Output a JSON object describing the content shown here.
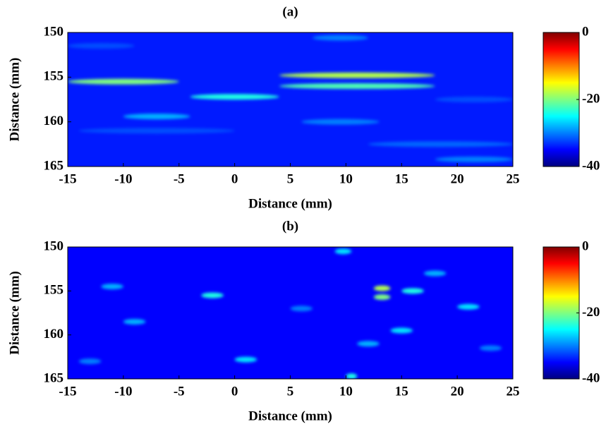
{
  "chart_data": [
    {
      "type": "heatmap",
      "title": "(a)",
      "xlabel": "Distance (mm)",
      "ylabel": "Distance (mm)",
      "xlim": [
        -15,
        25
      ],
      "xticks": [
        -15,
        -10,
        -5,
        0,
        5,
        10,
        15,
        20,
        25
      ],
      "ylim": [
        150,
        165
      ],
      "yticks": [
        150,
        155,
        160,
        165
      ],
      "clim": [
        -40,
        0
      ],
      "cticks": [
        0,
        -20,
        -40
      ],
      "background": -34,
      "segments": [
        {
          "x": [
            -15,
            -5
          ],
          "y": 155.5,
          "value": -20
        },
        {
          "x": [
            -4,
            4
          ],
          "y": 157.2,
          "value": -24
        },
        {
          "x": [
            4,
            18
          ],
          "y": 154.8,
          "value": -18
        },
        {
          "x": [
            4,
            18
          ],
          "y": 156.0,
          "value": -22
        },
        {
          "x": [
            -10,
            -4
          ],
          "y": 159.4,
          "value": -28
        },
        {
          "x": [
            7,
            12
          ],
          "y": 150.6,
          "value": -30
        },
        {
          "x": [
            -15,
            -9
          ],
          "y": 151.5,
          "value": -32
        },
        {
          "x": [
            18,
            25
          ],
          "y": 164.2,
          "value": -30
        },
        {
          "x": [
            6,
            13
          ],
          "y": 160.0,
          "value": -30
        },
        {
          "x": [
            18,
            25
          ],
          "y": 157.5,
          "value": -32
        },
        {
          "x": [
            -14,
            0
          ],
          "y": 161.0,
          "value": -32
        },
        {
          "x": [
            12,
            25
          ],
          "y": 162.5,
          "value": -31
        }
      ]
    },
    {
      "type": "heatmap",
      "title": "(b)",
      "xlabel": "Distance (mm)",
      "ylabel": "Distance (mm)",
      "xlim": [
        -15,
        25
      ],
      "xticks": [
        -15,
        -10,
        -5,
        0,
        5,
        10,
        15,
        20,
        25
      ],
      "ylim": [
        150,
        165
      ],
      "yticks": [
        150,
        155,
        160,
        165
      ],
      "clim": [
        -40,
        0
      ],
      "cticks": [
        0,
        -20,
        -40
      ],
      "background": -35,
      "segments": [
        {
          "x": [
            12.5,
            14
          ],
          "y": 154.7,
          "value": -18
        },
        {
          "x": [
            12.5,
            14
          ],
          "y": 155.7,
          "value": -20
        },
        {
          "x": [
            15,
            17
          ],
          "y": 155.0,
          "value": -24
        },
        {
          "x": [
            -3,
            -1
          ],
          "y": 155.5,
          "value": -24
        },
        {
          "x": [
            9,
            10.5
          ],
          "y": 150.5,
          "value": -26
        },
        {
          "x": [
            10,
            11
          ],
          "y": 164.7,
          "value": -24
        },
        {
          "x": [
            11,
            13
          ],
          "y": 161.0,
          "value": -28
        },
        {
          "x": [
            14,
            16
          ],
          "y": 159.5,
          "value": -26
        },
        {
          "x": [
            20,
            22
          ],
          "y": 156.8,
          "value": -26
        },
        {
          "x": [
            0,
            2
          ],
          "y": 162.8,
          "value": -26
        },
        {
          "x": [
            -10,
            -8
          ],
          "y": 158.5,
          "value": -28
        },
        {
          "x": [
            -12,
            -10
          ],
          "y": 154.5,
          "value": -28
        },
        {
          "x": [
            17,
            19
          ],
          "y": 153.0,
          "value": -28
        },
        {
          "x": [
            5,
            7
          ],
          "y": 157.0,
          "value": -30
        },
        {
          "x": [
            22,
            24
          ],
          "y": 161.5,
          "value": -30
        },
        {
          "x": [
            -14,
            -12
          ],
          "y": 163.0,
          "value": -30
        }
      ]
    }
  ]
}
